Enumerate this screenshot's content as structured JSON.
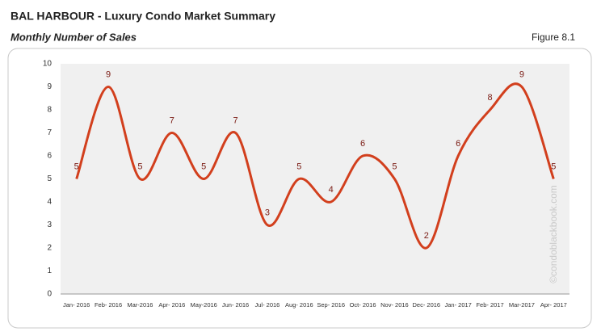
{
  "chart_data": {
    "type": "line",
    "title": "BAL HARBOUR - Luxury Condo Market Summary",
    "subtitle": "Monthly Number of Sales",
    "figure_label": "Figure 8.1",
    "watermark": "©condoblackbook.com",
    "categories": [
      "Jan- 2016",
      "Feb- 2016",
      "Mar-2016",
      "Apr- 2016",
      "May-2016",
      "Jun- 2016",
      "Jul- 2016",
      "Aug- 2016",
      "Sep- 2016",
      "Oct- 2016",
      "Nov- 2016",
      "Dec- 2016",
      "Jan- 2017",
      "Feb- 2017",
      "Mar-2017",
      "Apr- 2017"
    ],
    "values": [
      5,
      9,
      5,
      7,
      5,
      7,
      3,
      5,
      4,
      6,
      5,
      2,
      6,
      8,
      9,
      5
    ],
    "color": "#d23f1d",
    "ylim": [
      0,
      10
    ],
    "yticks": [
      0,
      1,
      2,
      3,
      4,
      5,
      6,
      7,
      8,
      9,
      10
    ],
    "grid": false,
    "smooth": true
  }
}
